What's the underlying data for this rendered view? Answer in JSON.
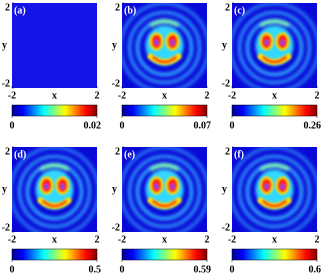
{
  "chart_data": [
    {
      "type": "heatmap",
      "title": "(a)",
      "xlabel": "x",
      "ylabel": "y",
      "xlim": [
        -2,
        2
      ],
      "xticks": [
        -2,
        2
      ],
      "ylim": [
        -2,
        2
      ],
      "yticks": [
        -2,
        2
      ],
      "pattern": false,
      "colorbar": {
        "lim": [
          0,
          0.02
        ],
        "ticks": [
          0,
          0.02
        ]
      }
    },
    {
      "type": "heatmap",
      "title": "(b)",
      "xlabel": "x",
      "ylabel": "y",
      "xlim": [
        -2,
        2
      ],
      "xticks": [
        -2,
        2
      ],
      "ylim": [
        -2,
        2
      ],
      "yticks": [
        -2,
        2
      ],
      "pattern": true,
      "colorbar": {
        "lim": [
          0,
          0.07
        ],
        "ticks": [
          0,
          0.07
        ]
      }
    },
    {
      "type": "heatmap",
      "title": "(c)",
      "xlabel": "x",
      "ylabel": "y",
      "xlim": [
        -2,
        2
      ],
      "xticks": [
        -2,
        2
      ],
      "ylim": [
        -2,
        2
      ],
      "yticks": [
        -2,
        2
      ],
      "pattern": true,
      "colorbar": {
        "lim": [
          0,
          0.26
        ],
        "ticks": [
          0,
          0.26
        ]
      }
    },
    {
      "type": "heatmap",
      "title": "(d)",
      "xlabel": "x",
      "ylabel": "y",
      "xlim": [
        -2,
        2
      ],
      "xticks": [
        -2,
        2
      ],
      "ylim": [
        -2,
        2
      ],
      "yticks": [
        -2,
        2
      ],
      "pattern": true,
      "colorbar": {
        "lim": [
          0,
          0.5
        ],
        "ticks": [
          0,
          0.5
        ]
      }
    },
    {
      "type": "heatmap",
      "title": "(e)",
      "xlabel": "x",
      "ylabel": "y",
      "xlim": [
        -2,
        2
      ],
      "xticks": [
        -2,
        2
      ],
      "ylim": [
        -2,
        2
      ],
      "yticks": [
        -2,
        2
      ],
      "pattern": true,
      "colorbar": {
        "lim": [
          0,
          0.59
        ],
        "ticks": [
          0,
          0.59
        ]
      }
    },
    {
      "type": "heatmap",
      "title": "(f)",
      "xlabel": "x",
      "ylabel": "y",
      "xlim": [
        -2,
        2
      ],
      "xticks": [
        -2,
        2
      ],
      "ylim": [
        -2,
        2
      ],
      "yticks": [
        -2,
        2
      ],
      "pattern": true,
      "colorbar": {
        "lim": [
          0,
          0.6
        ],
        "ticks": [
          0,
          0.6
        ]
      }
    }
  ]
}
